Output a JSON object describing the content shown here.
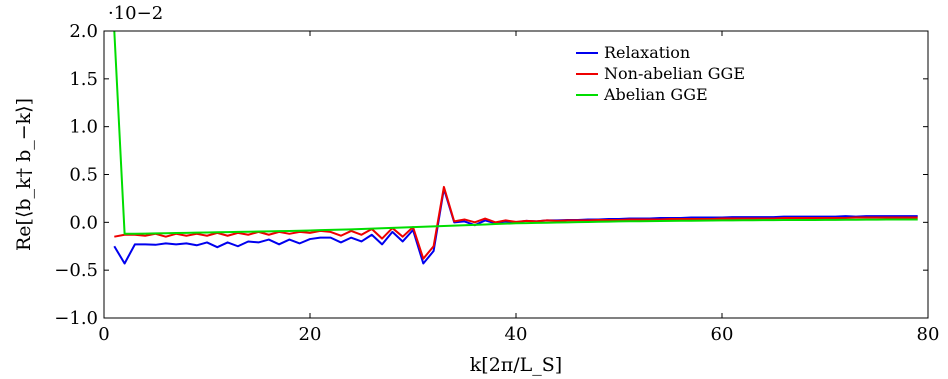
{
  "chart_data": {
    "type": "line",
    "title": "",
    "xlabel": "k[2π/L_S]",
    "ylabel": "Re[⟨b_k† b_−k⟩]",
    "y_scale_note": "·10−2",
    "xlim": [
      0,
      80
    ],
    "ylim": [
      -1.0,
      2.0
    ],
    "xticks": [
      "0",
      "20",
      "40",
      "60",
      "80"
    ],
    "yticks": [
      "−1.0",
      "−0.5",
      "0.0",
      "0.5",
      "1.0",
      "1.5",
      "2.0"
    ],
    "grid": false,
    "legend_position": "top-right",
    "x": [
      1,
      2,
      3,
      4,
      5,
      6,
      7,
      8,
      9,
      10,
      11,
      12,
      13,
      14,
      15,
      16,
      17,
      18,
      19,
      20,
      21,
      22,
      23,
      24,
      25,
      26,
      27,
      28,
      29,
      30,
      31,
      32,
      33,
      34,
      35,
      36,
      37,
      38,
      39,
      40,
      41,
      42,
      43,
      44,
      45,
      46,
      47,
      48,
      49,
      50,
      51,
      52,
      53,
      54,
      55,
      56,
      57,
      58,
      59,
      60,
      61,
      62,
      63,
      64,
      65,
      66,
      67,
      68,
      69,
      70,
      71,
      72,
      73,
      74,
      75,
      76,
      77,
      78,
      79
    ],
    "series": [
      {
        "name": "Relaxation",
        "color": "#0000ee",
        "values": [
          -0.25,
          -0.43,
          -0.23,
          -0.23,
          -0.235,
          -0.22,
          -0.23,
          -0.22,
          -0.24,
          -0.21,
          -0.26,
          -0.21,
          -0.25,
          -0.2,
          -0.21,
          -0.18,
          -0.23,
          -0.18,
          -0.22,
          -0.175,
          -0.16,
          -0.16,
          -0.21,
          -0.16,
          -0.2,
          -0.13,
          -0.23,
          -0.1,
          -0.2,
          -0.08,
          -0.43,
          -0.3,
          0.35,
          0.0,
          0.01,
          -0.03,
          0.02,
          -0.01,
          0.01,
          0.0,
          0.015,
          0.01,
          0.02,
          0.02,
          0.025,
          0.025,
          0.03,
          0.03,
          0.035,
          0.035,
          0.04,
          0.04,
          0.04,
          0.045,
          0.045,
          0.045,
          0.05,
          0.05,
          0.05,
          0.05,
          0.055,
          0.055,
          0.055,
          0.055,
          0.055,
          0.06,
          0.06,
          0.06,
          0.06,
          0.06,
          0.06,
          0.065,
          0.06,
          0.065,
          0.065,
          0.065,
          0.065,
          0.065,
          0.065
        ]
      },
      {
        "name": "Non-abelian GGE",
        "color": "#ee0000",
        "values": [
          -0.15,
          -0.13,
          -0.13,
          -0.14,
          -0.12,
          -0.15,
          -0.12,
          -0.14,
          -0.12,
          -0.14,
          -0.11,
          -0.14,
          -0.11,
          -0.13,
          -0.1,
          -0.13,
          -0.1,
          -0.12,
          -0.1,
          -0.11,
          -0.09,
          -0.1,
          -0.14,
          -0.09,
          -0.13,
          -0.07,
          -0.17,
          -0.06,
          -0.15,
          -0.05,
          -0.38,
          -0.25,
          0.37,
          0.01,
          0.03,
          0.0,
          0.04,
          0.0,
          0.02,
          0.005,
          0.015,
          0.01,
          0.02,
          0.015,
          0.02,
          0.02,
          0.02,
          0.025,
          0.025,
          0.025,
          0.03,
          0.03,
          0.03,
          0.03,
          0.035,
          0.035,
          0.035,
          0.035,
          0.035,
          0.04,
          0.04,
          0.04,
          0.04,
          0.04,
          0.04,
          0.045,
          0.045,
          0.045,
          0.045,
          0.045,
          0.045,
          0.045,
          0.05,
          0.05,
          0.05,
          0.05,
          0.05,
          0.05,
          0.05
        ]
      },
      {
        "name": "Abelian GGE",
        "color": "#00dd00",
        "values": [
          2.0,
          -0.12,
          -0.12,
          -0.118,
          -0.116,
          -0.114,
          -0.112,
          -0.11,
          -0.108,
          -0.106,
          -0.104,
          -0.102,
          -0.1,
          -0.098,
          -0.096,
          -0.094,
          -0.092,
          -0.09,
          -0.088,
          -0.085,
          -0.082,
          -0.079,
          -0.076,
          -0.073,
          -0.07,
          -0.066,
          -0.062,
          -0.058,
          -0.054,
          -0.05,
          -0.046,
          -0.042,
          -0.038,
          -0.034,
          -0.03,
          -0.026,
          -0.022,
          -0.018,
          -0.014,
          -0.01,
          -0.008,
          -0.006,
          -0.004,
          -0.002,
          0.0,
          0.002,
          0.004,
          0.006,
          0.008,
          0.01,
          0.011,
          0.012,
          0.013,
          0.014,
          0.015,
          0.016,
          0.017,
          0.018,
          0.019,
          0.02,
          0.021,
          0.022,
          0.022,
          0.023,
          0.023,
          0.024,
          0.024,
          0.025,
          0.025,
          0.026,
          0.026,
          0.027,
          0.027,
          0.028,
          0.028,
          0.029,
          0.029,
          0.03,
          0.03
        ]
      }
    ]
  }
}
